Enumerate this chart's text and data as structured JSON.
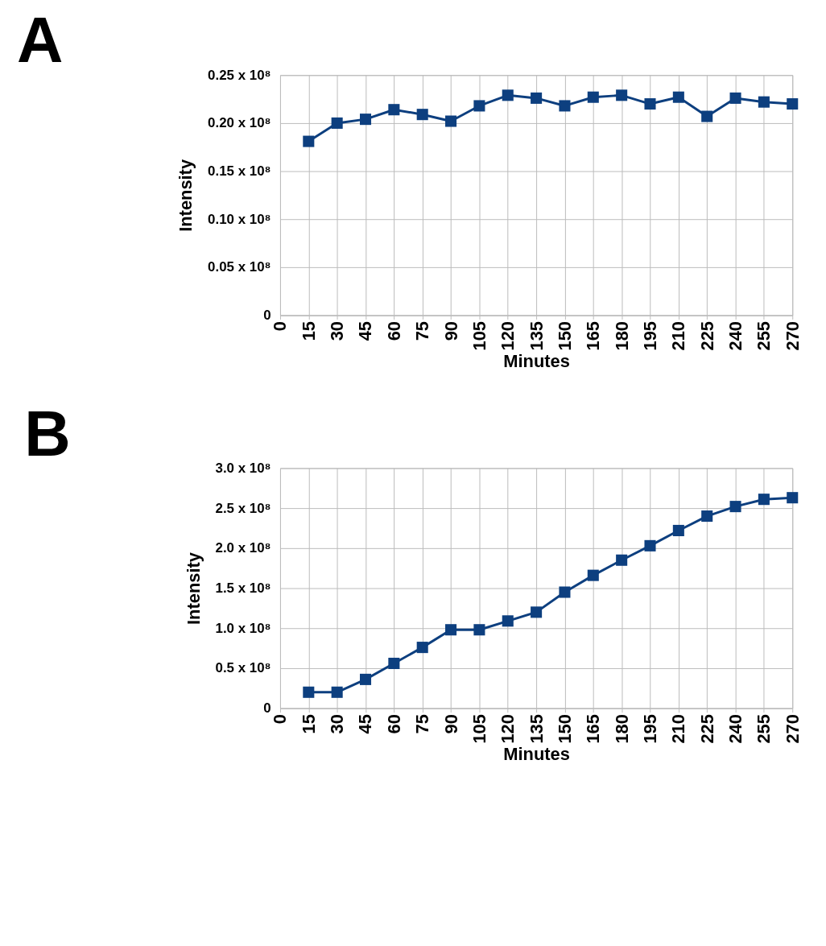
{
  "chart_data": [
    {
      "type": "line",
      "title": "A",
      "xlabel": "Minutes",
      "ylabel": "Intensity",
      "x": [
        15,
        30,
        45,
        60,
        75,
        90,
        105,
        120,
        135,
        150,
        165,
        180,
        195,
        210,
        225,
        240,
        255,
        270
      ],
      "series": [
        {
          "color": "#0d3f7f",
          "values": [
            18100000,
            20000000,
            20400000,
            21400000,
            20900000,
            20200000,
            21800000,
            22900000,
            22600000,
            21800000,
            22700000,
            22900000,
            22000000,
            22700000,
            20700000,
            22600000,
            22200000,
            22000000
          ]
        }
      ],
      "xlim": [
        0,
        270
      ],
      "xticks": [
        0,
        15,
        30,
        45,
        60,
        75,
        90,
        105,
        120,
        135,
        150,
        165,
        180,
        195,
        210,
        225,
        240,
        255,
        270
      ],
      "ylim": [
        0,
        25000000
      ],
      "yticks": [
        0,
        {
          "value": 5000000,
          "label": "0.05 x 10⁸"
        },
        {
          "value": 10000000,
          "label": "0.10 x 10⁸"
        },
        {
          "value": 15000000,
          "label": "0.15 x 10⁸"
        },
        {
          "value": 20000000,
          "label": "0.20 x 10⁸"
        },
        {
          "value": 25000000,
          "label": "0.25 x 10⁸"
        }
      ],
      "grid": true,
      "marker": "square",
      "line_style": "solid"
    },
    {
      "type": "line",
      "title": "B",
      "xlabel": "Minutes",
      "ylabel": "Intensity",
      "x": [
        15,
        30,
        45,
        60,
        75,
        90,
        105,
        120,
        135,
        150,
        165,
        180,
        195,
        210,
        225,
        240,
        255,
        270
      ],
      "series": [
        {
          "color": "#0d3f7f",
          "values": [
            20000000,
            20000000,
            36000000,
            56000000,
            76000000,
            98000000,
            98000000,
            109000000,
            120000000,
            145000000,
            166000000,
            185000000,
            203000000,
            222000000,
            240000000,
            252000000,
            261000000,
            263000000
          ]
        }
      ],
      "xlim": [
        0,
        270
      ],
      "xticks": [
        0,
        15,
        30,
        45,
        60,
        75,
        90,
        105,
        120,
        135,
        150,
        165,
        180,
        195,
        210,
        225,
        240,
        255,
        270
      ],
      "ylim": [
        0,
        300000000
      ],
      "yticks": [
        0,
        {
          "value": 50000000,
          "label": "0.5 x 10⁸"
        },
        {
          "value": 100000000,
          "label": "1.0 x 10⁸"
        },
        {
          "value": 150000000,
          "label": "1.5 x 10⁸"
        },
        {
          "value": 200000000,
          "label": "2.0 x 10⁸"
        },
        {
          "value": 250000000,
          "label": "2.5 x 10⁸"
        },
        {
          "value": 300000000,
          "label": "3.0 x 10⁸"
        }
      ],
      "grid": true,
      "marker": "square",
      "line_style": "solid"
    }
  ]
}
